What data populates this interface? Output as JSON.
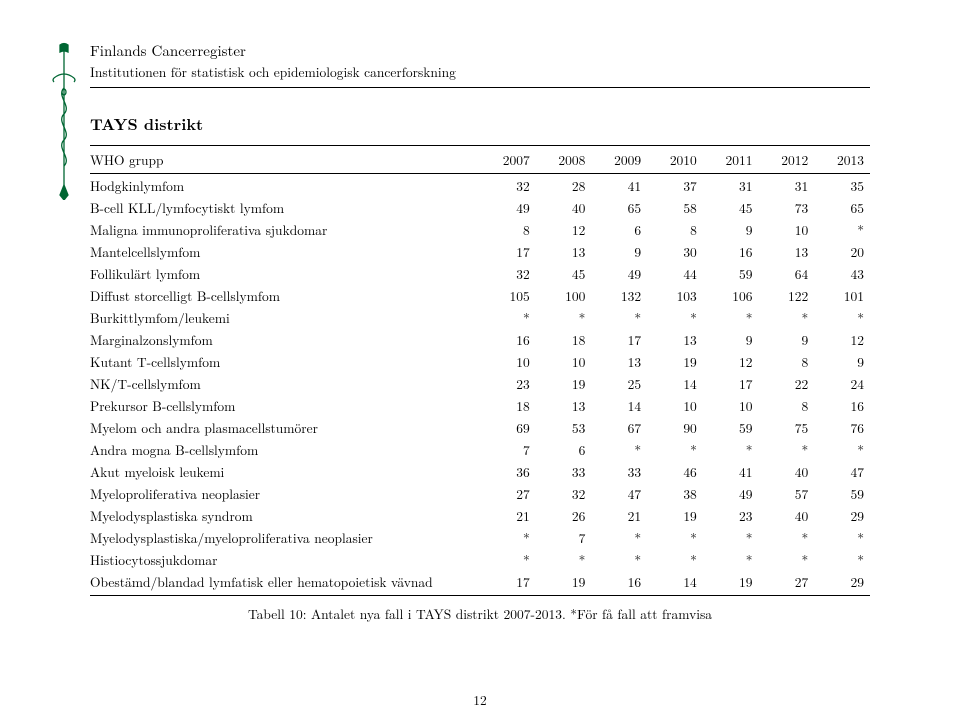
{
  "header": {
    "org": "Finlands Cancerregister",
    "sub": "Institutionen för statistisk och epidemiologisk cancerforskning"
  },
  "title": "TAYS distrikt",
  "table": {
    "col_label": "WHO grupp",
    "years": [
      "2007",
      "2008",
      "2009",
      "2010",
      "2011",
      "2012",
      "2013"
    ],
    "rows": [
      {
        "label": "Hodgkinlymfom",
        "v": [
          "32",
          "28",
          "41",
          "37",
          "31",
          "31",
          "35"
        ]
      },
      {
        "label": "B-cell KLL/lymfocytiskt lymfom",
        "v": [
          "49",
          "40",
          "65",
          "58",
          "45",
          "73",
          "65"
        ]
      },
      {
        "label": "Maligna immunoproliferativa sjukdomar",
        "v": [
          "8",
          "12",
          "6",
          "8",
          "9",
          "10",
          "*"
        ]
      },
      {
        "label": "Mantelcellslymfom",
        "v": [
          "17",
          "13",
          "9",
          "30",
          "16",
          "13",
          "20"
        ]
      },
      {
        "label": "Follikulärt lymfom",
        "v": [
          "32",
          "45",
          "49",
          "44",
          "59",
          "64",
          "43"
        ]
      },
      {
        "label": "Diffust storcelligt B-cellslymfom",
        "v": [
          "105",
          "100",
          "132",
          "103",
          "106",
          "122",
          "101"
        ]
      },
      {
        "label": "Burkittlymfom/leukemi",
        "v": [
          "*",
          "*",
          "*",
          "*",
          "*",
          "*",
          "*"
        ]
      },
      {
        "label": "Marginalzonslymfom",
        "v": [
          "16",
          "18",
          "17",
          "13",
          "9",
          "9",
          "12"
        ]
      },
      {
        "label": "Kutant T-cellslymfom",
        "v": [
          "10",
          "10",
          "13",
          "19",
          "12",
          "8",
          "9"
        ]
      },
      {
        "label": "NK/T-cellslymfom",
        "v": [
          "23",
          "19",
          "25",
          "14",
          "17",
          "22",
          "24"
        ]
      },
      {
        "label": "Prekursor B-cellslymfom",
        "v": [
          "18",
          "13",
          "14",
          "10",
          "10",
          "8",
          "16"
        ]
      },
      {
        "label": "Myelom och andra plasmacellstumörer",
        "v": [
          "69",
          "53",
          "67",
          "90",
          "59",
          "75",
          "76"
        ]
      },
      {
        "label": "Andra mogna B-cellslymfom",
        "v": [
          "7",
          "6",
          "*",
          "*",
          "*",
          "*",
          "*"
        ]
      },
      {
        "label": "Akut myeloisk leukemi",
        "v": [
          "36",
          "33",
          "33",
          "46",
          "41",
          "40",
          "47"
        ]
      },
      {
        "label": "Myeloproliferativa neoplasier",
        "v": [
          "27",
          "32",
          "47",
          "38",
          "49",
          "57",
          "59"
        ]
      },
      {
        "label": "Myelodysplastiska syndrom",
        "v": [
          "21",
          "26",
          "21",
          "19",
          "23",
          "40",
          "29"
        ]
      },
      {
        "label": "Myelodysplastiska/myeloproliferativa neoplasier",
        "v": [
          "*",
          "7",
          "*",
          "*",
          "*",
          "*",
          "*"
        ]
      },
      {
        "label": "Histiocytossjukdomar",
        "v": [
          "*",
          "*",
          "*",
          "*",
          "*",
          "*",
          "*"
        ]
      },
      {
        "label": "Obestämd/blandad lymfatisk eller hematopoietisk vävnad",
        "v": [
          "17",
          "19",
          "16",
          "14",
          "19",
          "27",
          "29"
        ]
      }
    ]
  },
  "caption": "Tabell 10: Antalet nya fall i TAYS distrikt 2007-2013. *För få fall att framvisa",
  "pagenum": "12",
  "logo_color": "#006633"
}
